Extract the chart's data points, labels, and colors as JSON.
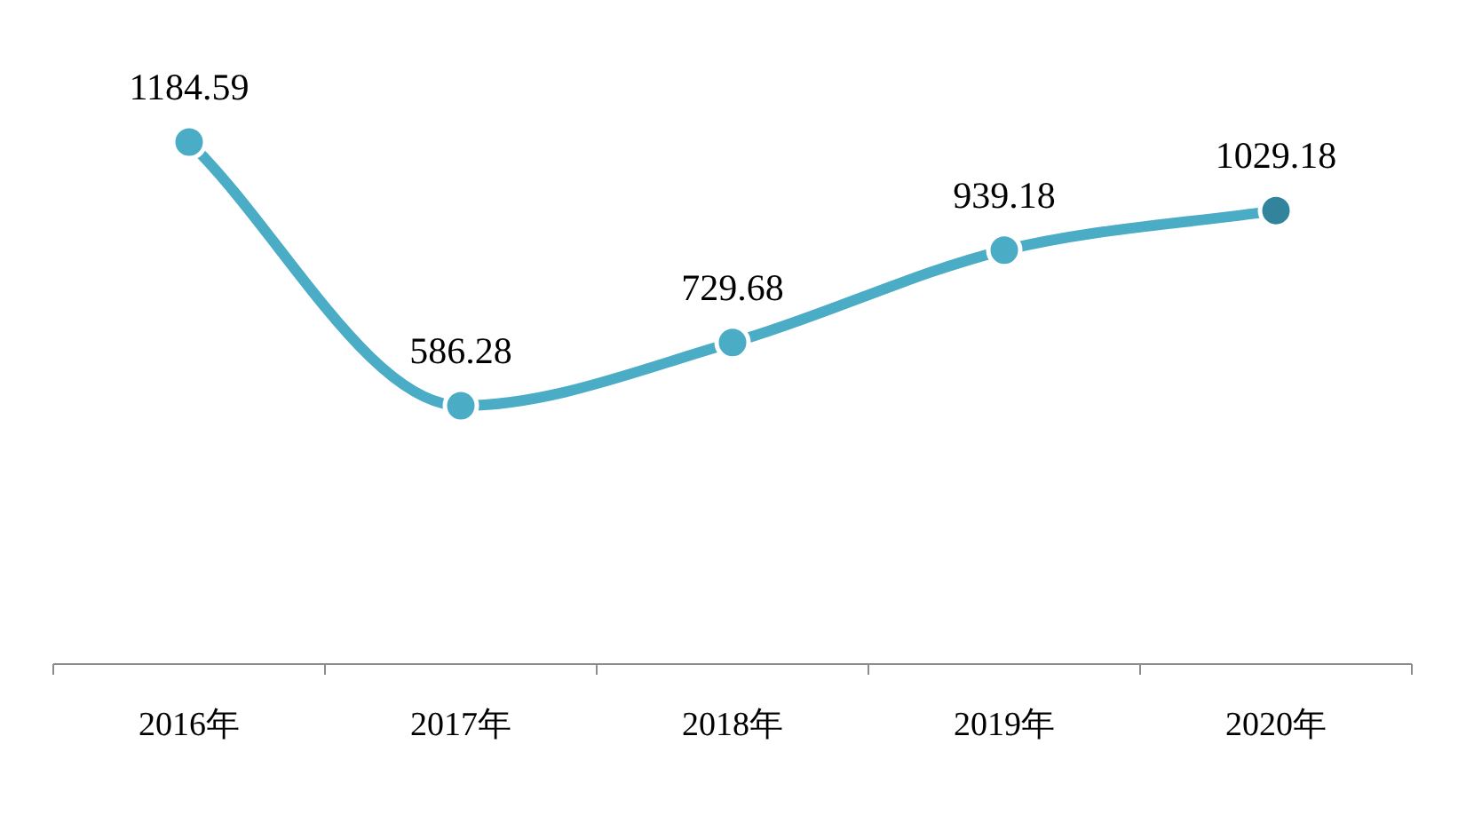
{
  "chart_data": {
    "type": "line",
    "categories": [
      "2016年",
      "2017年",
      "2018年",
      "2019年",
      "2020年"
    ],
    "series": [
      {
        "color": "#4bacc6",
        "values": [
          1184.59,
          586.28,
          729.68,
          939.18,
          1029.18
        ]
      }
    ],
    "colors": [
      "#4bacc6",
      "#4bacc6",
      "#4bacc6",
      "#4bacc6",
      "#31849b"
    ],
    "data_labels": true,
    "marker": "circle",
    "line_style": "solid"
  }
}
